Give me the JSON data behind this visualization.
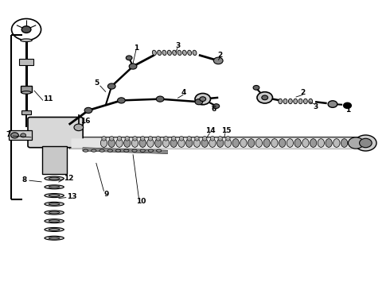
{
  "bg_color": "#ffffff",
  "line_color": "#000000",
  "line_width": 0.8
}
